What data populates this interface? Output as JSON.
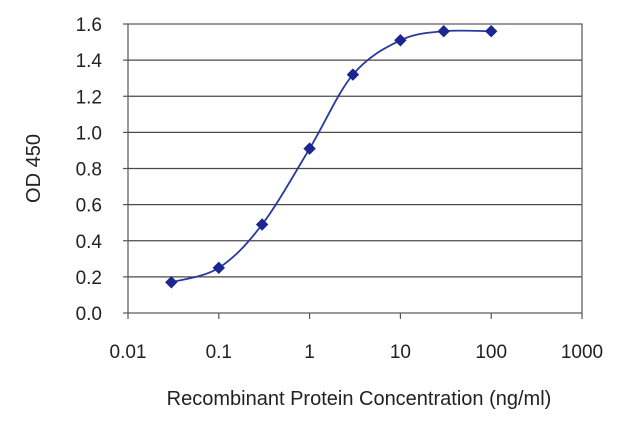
{
  "chart_data": {
    "type": "line",
    "x_scale": "log",
    "xlim": [
      0.01,
      1000
    ],
    "ylim": [
      0,
      1.6
    ],
    "xticks": [
      "0.01",
      "0.1",
      "1",
      "10",
      "100",
      "1000"
    ],
    "xtick_values": [
      0.01,
      0.1,
      1,
      10,
      100,
      1000
    ],
    "yticks": [
      "0.0",
      "0.2",
      "0.4",
      "0.6",
      "0.8",
      "1.0",
      "1.2",
      "1.4",
      "1.6"
    ],
    "ytick_values": [
      0,
      0.2,
      0.4,
      0.6,
      0.8,
      1.0,
      1.2,
      1.4,
      1.6
    ],
    "xlabel": "Recombinant Protein Concentration (ng/ml)",
    "ylabel": "OD 450",
    "grid": "horizontal",
    "series": [
      {
        "x": [
          0.03,
          0.1,
          0.3,
          1,
          3,
          10,
          30,
          100
        ],
        "y": [
          0.17,
          0.25,
          0.49,
          0.91,
          1.32,
          1.51,
          1.56,
          1.56
        ],
        "color": "#2a3a9c"
      }
    ]
  }
}
